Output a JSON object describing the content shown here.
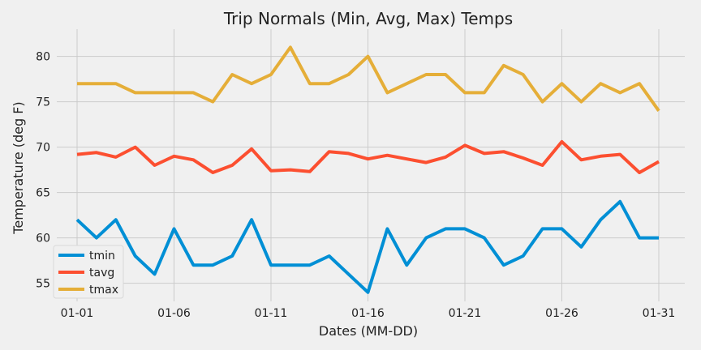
{
  "chart_data": {
    "type": "line",
    "title": "Trip Normals (Min, Avg, Max) Temps",
    "xlabel": "Dates (MM-DD)",
    "ylabel": "Temperature (deg F)",
    "categories": [
      "01-01",
      "01-02",
      "01-03",
      "01-04",
      "01-05",
      "01-06",
      "01-07",
      "01-08",
      "01-09",
      "01-10",
      "01-11",
      "01-12",
      "01-13",
      "01-14",
      "01-15",
      "01-16",
      "01-17",
      "01-18",
      "01-19",
      "01-20",
      "01-21",
      "01-22",
      "01-23",
      "01-24",
      "01-25",
      "01-26",
      "01-27",
      "01-28",
      "01-29",
      "01-30",
      "01-31"
    ],
    "xtick_labels": [
      "01-01",
      "01-06",
      "01-11",
      "01-16",
      "01-21",
      "01-26",
      "01-31"
    ],
    "yticks": [
      55,
      60,
      65,
      70,
      75,
      80
    ],
    "ylim": [
      53,
      83
    ],
    "grid": true,
    "legend_position": "lower-left",
    "series": [
      {
        "name": "tmin",
        "color": "#008fd5",
        "values": [
          62,
          60,
          62,
          58,
          56,
          61,
          57,
          57,
          58,
          62,
          57,
          57,
          57,
          58,
          56,
          54,
          61,
          57,
          60,
          61,
          61,
          60,
          57,
          58,
          61,
          61,
          59,
          62,
          64,
          60,
          60
        ]
      },
      {
        "name": "tavg",
        "color": "#fc4f30",
        "values": [
          69.2,
          69.4,
          68.9,
          70.0,
          68.0,
          69.0,
          68.6,
          67.2,
          68.0,
          69.8,
          67.4,
          67.5,
          67.3,
          69.5,
          69.3,
          68.7,
          69.1,
          68.7,
          68.3,
          68.9,
          70.2,
          69.3,
          69.5,
          68.8,
          68.0,
          70.6,
          68.6,
          69.0,
          69.2,
          67.2,
          68.4
        ]
      },
      {
        "name": "tmax",
        "color": "#e5ae38",
        "values": [
          77,
          77,
          77,
          76,
          76,
          76,
          76,
          75,
          78,
          77,
          78,
          81,
          77,
          77,
          78,
          80,
          76,
          77,
          78,
          78,
          76,
          76,
          79,
          78,
          75,
          77,
          75,
          77,
          76,
          77,
          74
        ]
      }
    ]
  }
}
